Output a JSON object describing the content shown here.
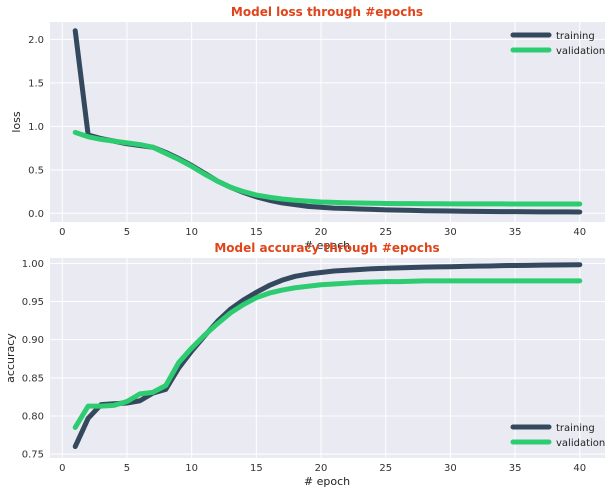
{
  "colors": {
    "plot_bg": "#eaeaf2",
    "grid": "#ffffff",
    "title": "#e0441a",
    "training": "#34495e",
    "validation": "#2ecc71"
  },
  "chart_data": [
    {
      "type": "line",
      "title": "Model loss through #epochs",
      "xlabel": "# epoch",
      "ylabel": "loss",
      "xlim": [
        -0.95,
        41.95
      ],
      "ylim": [
        -0.1,
        2.2
      ],
      "xticks": [
        0,
        5,
        10,
        15,
        20,
        25,
        30,
        35,
        40
      ],
      "yticks": [
        0.0,
        0.5,
        1.0,
        1.5,
        2.0
      ],
      "ytick_labels": [
        "0.0",
        "0.5",
        "1.0",
        "1.5",
        "2.0"
      ],
      "grid": true,
      "legend": "top-right",
      "x": [
        1,
        2,
        3,
        4,
        5,
        6,
        7,
        8,
        9,
        10,
        11,
        12,
        13,
        14,
        15,
        16,
        17,
        18,
        19,
        20,
        21,
        22,
        23,
        24,
        25,
        26,
        27,
        28,
        29,
        30,
        31,
        32,
        33,
        34,
        35,
        36,
        37,
        38,
        39,
        40
      ],
      "series": [
        {
          "name": "training",
          "values": [
            2.1,
            0.9,
            0.86,
            0.83,
            0.8,
            0.78,
            0.76,
            0.7,
            0.63,
            0.55,
            0.46,
            0.37,
            0.3,
            0.24,
            0.19,
            0.15,
            0.12,
            0.1,
            0.08,
            0.07,
            0.06,
            0.055,
            0.05,
            0.045,
            0.04,
            0.036,
            0.033,
            0.03,
            0.028,
            0.026,
            0.024,
            0.022,
            0.021,
            0.02,
            0.019,
            0.018,
            0.017,
            0.016,
            0.016,
            0.015
          ]
        },
        {
          "name": "validation",
          "values": [
            0.93,
            0.88,
            0.85,
            0.83,
            0.81,
            0.79,
            0.76,
            0.69,
            0.62,
            0.54,
            0.45,
            0.37,
            0.3,
            0.25,
            0.21,
            0.185,
            0.165,
            0.15,
            0.14,
            0.13,
            0.125,
            0.12,
            0.118,
            0.115,
            0.113,
            0.112,
            0.111,
            0.11,
            0.11,
            0.109,
            0.109,
            0.108,
            0.108,
            0.108,
            0.107,
            0.107,
            0.107,
            0.107,
            0.107,
            0.107
          ]
        }
      ]
    },
    {
      "type": "line",
      "title": "Model accuracy through #epochs",
      "xlabel": "# epoch",
      "ylabel": "accuracy",
      "xlim": [
        -0.95,
        41.95
      ],
      "ylim": [
        0.745,
        1.007
      ],
      "xticks": [
        0,
        5,
        10,
        15,
        20,
        25,
        30,
        35,
        40
      ],
      "yticks": [
        0.75,
        0.8,
        0.85,
        0.9,
        0.95,
        1.0
      ],
      "ytick_labels": [
        "0.75",
        "0.80",
        "0.85",
        "0.90",
        "0.95",
        "1.00"
      ],
      "grid": true,
      "legend": "bottom-right",
      "x": [
        1,
        2,
        3,
        4,
        5,
        6,
        7,
        8,
        9,
        10,
        11,
        12,
        13,
        14,
        15,
        16,
        17,
        18,
        19,
        20,
        21,
        22,
        23,
        24,
        25,
        26,
        27,
        28,
        29,
        30,
        31,
        32,
        33,
        34,
        35,
        36,
        37,
        38,
        39,
        40
      ],
      "series": [
        {
          "name": "training",
          "values": [
            0.76,
            0.797,
            0.815,
            0.816,
            0.817,
            0.82,
            0.83,
            0.835,
            0.863,
            0.885,
            0.905,
            0.924,
            0.94,
            0.952,
            0.962,
            0.971,
            0.978,
            0.983,
            0.986,
            0.988,
            0.99,
            0.991,
            0.992,
            0.993,
            0.9935,
            0.994,
            0.9945,
            0.995,
            0.9953,
            0.9956,
            0.996,
            0.9963,
            0.9966,
            0.997,
            0.9972,
            0.9974,
            0.9976,
            0.9978,
            0.998,
            0.9982
          ]
        },
        {
          "name": "validation",
          "values": [
            0.785,
            0.813,
            0.813,
            0.814,
            0.819,
            0.829,
            0.831,
            0.84,
            0.87,
            0.889,
            0.906,
            0.921,
            0.935,
            0.946,
            0.955,
            0.961,
            0.965,
            0.968,
            0.97,
            0.972,
            0.973,
            0.974,
            0.975,
            0.9755,
            0.976,
            0.976,
            0.9765,
            0.977,
            0.977,
            0.977,
            0.977,
            0.977,
            0.977,
            0.977,
            0.977,
            0.977,
            0.977,
            0.977,
            0.977,
            0.977
          ]
        }
      ]
    }
  ]
}
